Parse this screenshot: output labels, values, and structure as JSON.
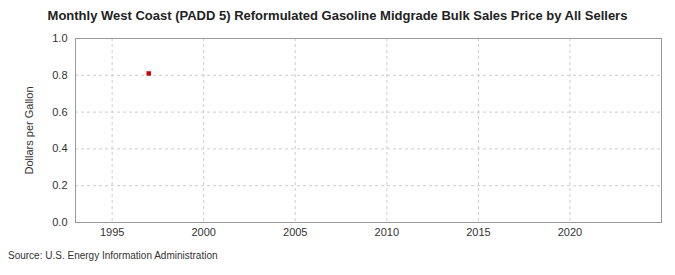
{
  "chart_data": {
    "type": "scatter",
    "title": "Monthly West Coast (PADD 5) Reformulated Gasoline Midgrade Bulk Sales Price by All Sellers",
    "caption": "Source: U.S. Energy Information Administration",
    "y_label": "Dollars per Gallon",
    "x": [
      1997
    ],
    "values": [
      0.81
    ],
    "color": "#cc0000",
    "marker": "square",
    "xlim": [
      1993,
      2025
    ],
    "xticks": [
      1995,
      2000,
      2005,
      2010,
      2015,
      2020
    ],
    "ylim": [
      0,
      1
    ],
    "yticks": [
      {
        "value": 0,
        "label": "0.0"
      },
      0.2,
      0.4,
      0.6,
      0.8,
      {
        "value": 1,
        "label": "1.0"
      }
    ],
    "grid": true
  }
}
